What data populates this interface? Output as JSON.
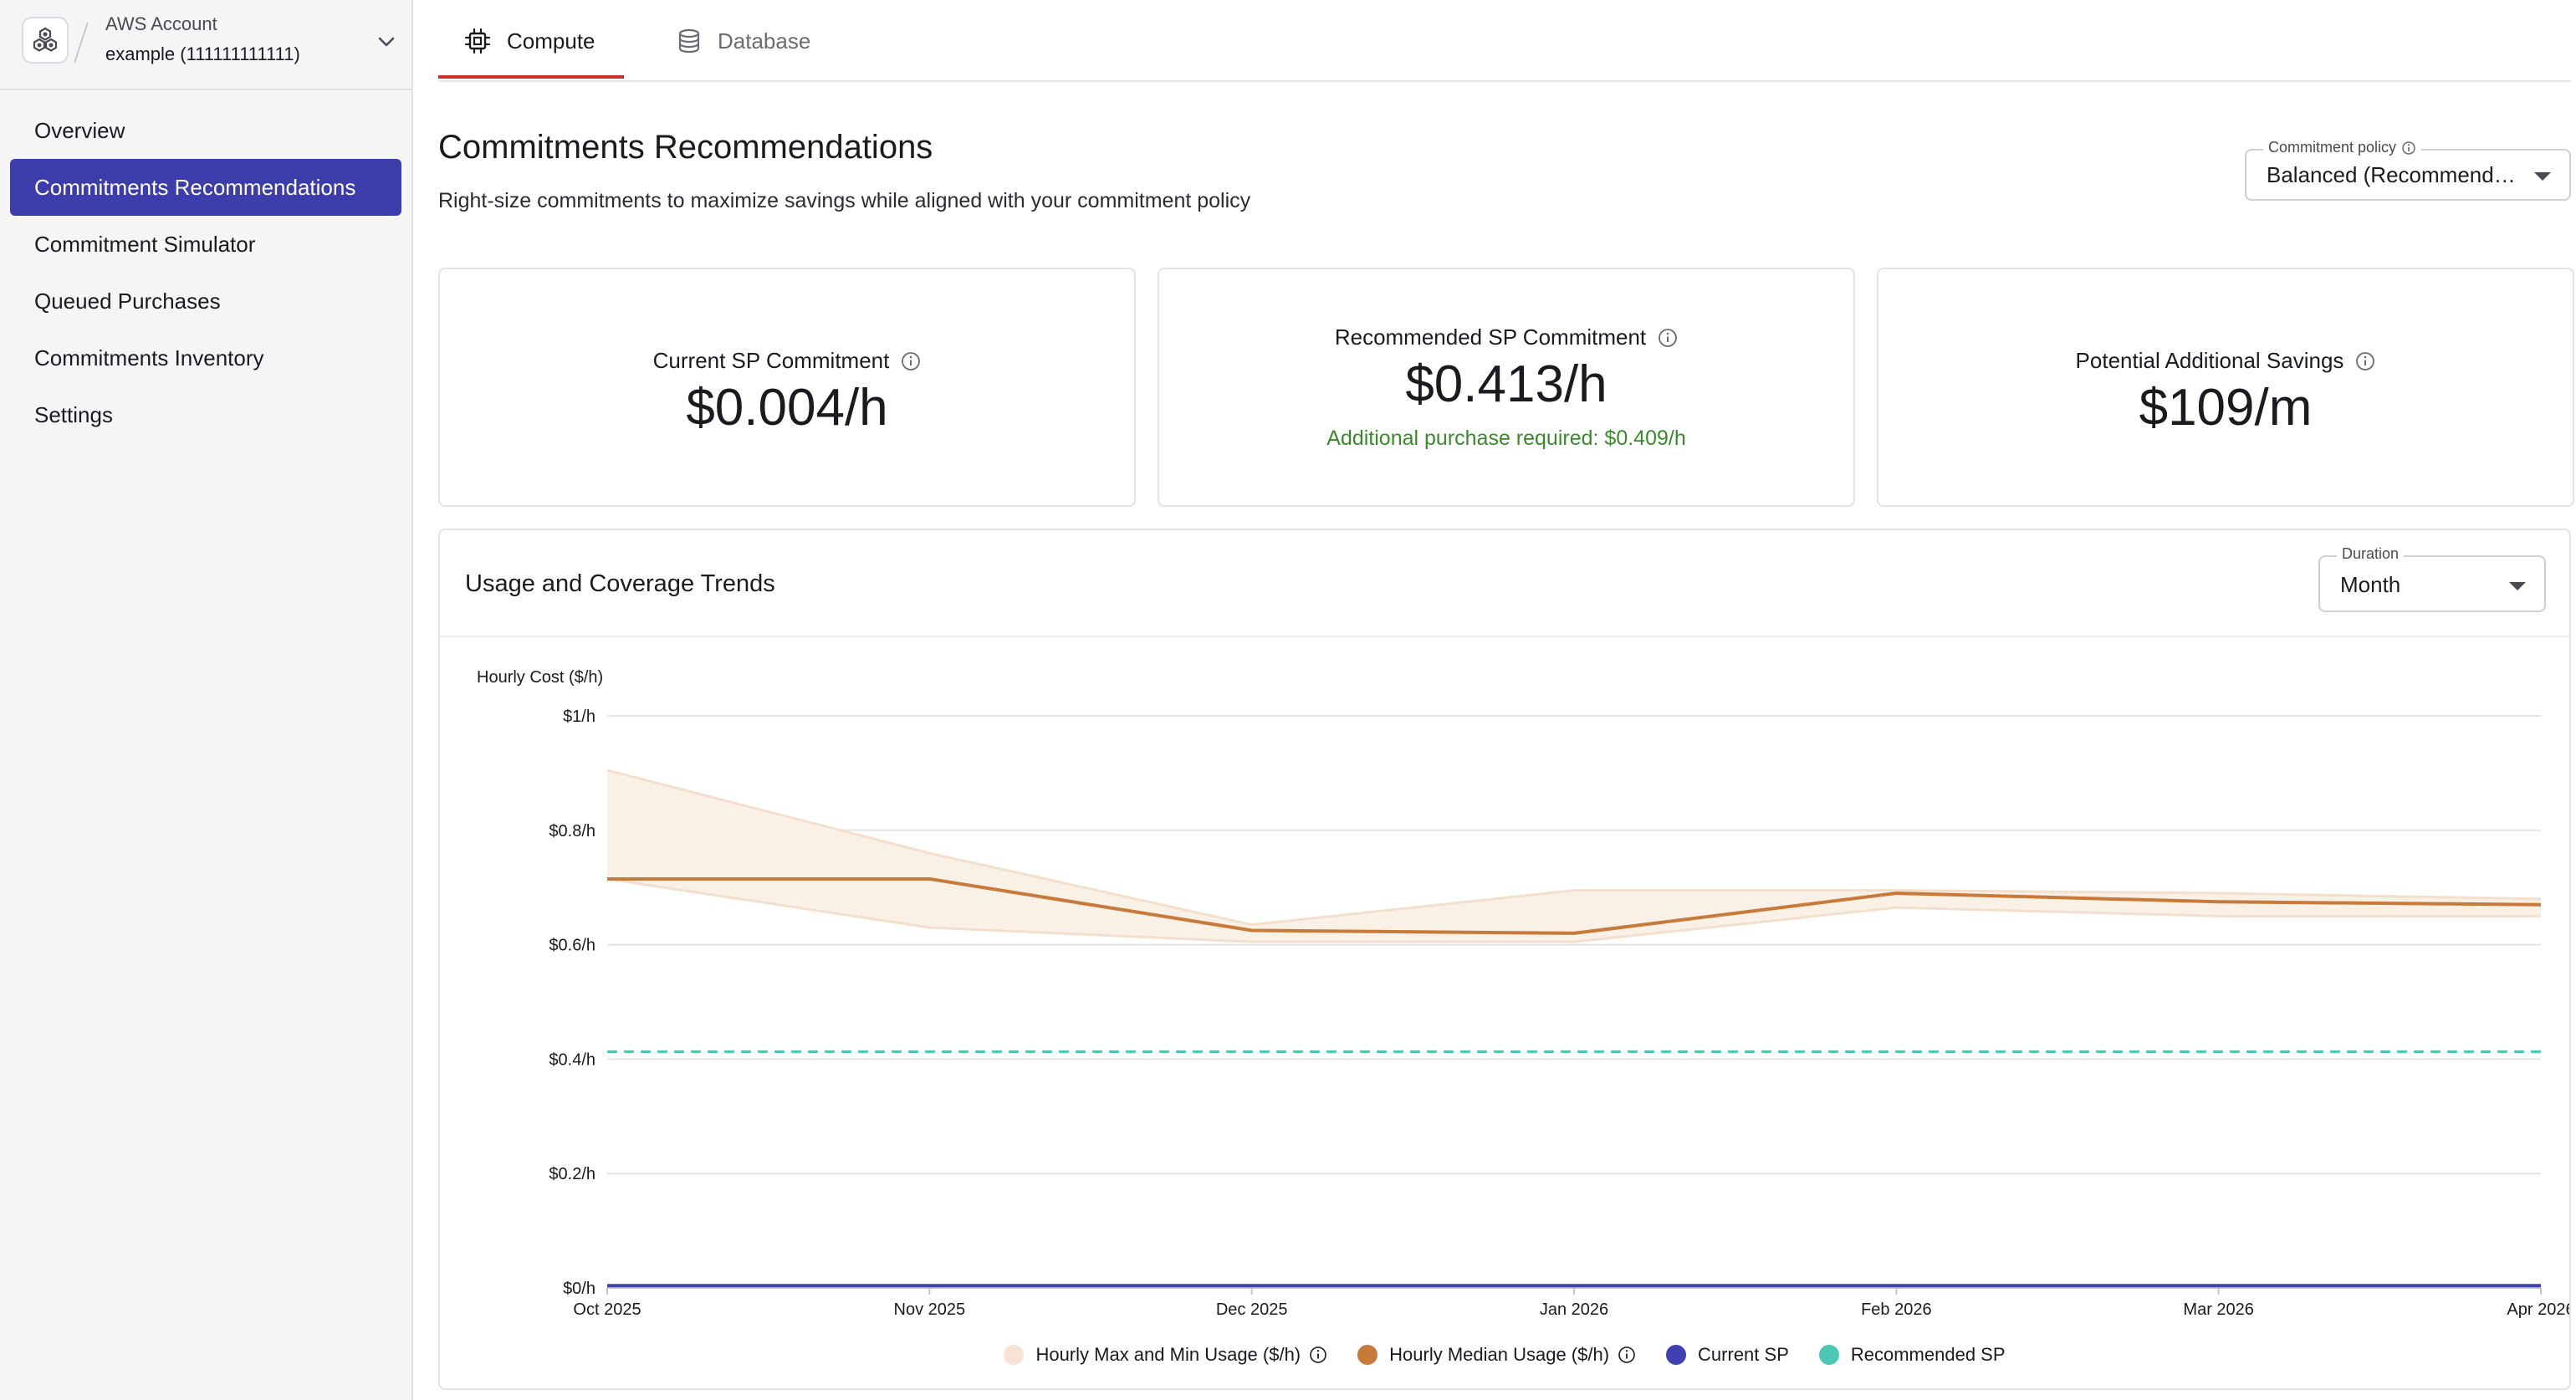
{
  "account": {
    "label": "AWS Account",
    "value": "example (111111111111)"
  },
  "sidebar": {
    "items": [
      {
        "label": "Overview",
        "active": false
      },
      {
        "label": "Commitments Recommendations",
        "active": true
      },
      {
        "label": "Commitment Simulator",
        "active": false
      },
      {
        "label": "Queued Purchases",
        "active": false
      },
      {
        "label": "Commitments Inventory",
        "active": false
      },
      {
        "label": "Settings",
        "active": false
      }
    ]
  },
  "tabs": [
    {
      "label": "Compute",
      "icon": "cpu-icon",
      "active": true
    },
    {
      "label": "Database",
      "icon": "database-icon",
      "active": false
    }
  ],
  "page": {
    "title": "Commitments Recommendations",
    "subtitle": "Right-size commitments to maximize savings while aligned with your commitment policy"
  },
  "policy": {
    "label": "Commitment policy",
    "value": "Balanced (Recommended)"
  },
  "cards": {
    "current": {
      "label": "Current SP Commitment",
      "value": "$0.004/h"
    },
    "recommended": {
      "label": "Recommended SP Commitment",
      "value": "$0.413/h",
      "note": "Additional purchase required: $0.409/h"
    },
    "savings": {
      "label": "Potential Additional Savings",
      "value": "$109/m"
    }
  },
  "trends": {
    "title": "Usage and Coverage Trends",
    "duration_label": "Duration",
    "duration_value": "Month"
  },
  "colors": {
    "accent": "#3c3cab",
    "tab_indicator": "#c9302c",
    "band_fill": "#f9f0e6",
    "band_line": "#f3dfcc",
    "median": "#c87a3a",
    "current_sp": "#4040b0",
    "recommended_sp": "#4cc7b4",
    "positive": "#3a8a2a"
  },
  "chart_data": {
    "type": "line",
    "ylabel": "Hourly Cost ($/h)",
    "ylim": [
      0,
      1
    ],
    "yticks": [
      0,
      0.2,
      0.4,
      0.6,
      0.8,
      1.0
    ],
    "ytick_labels": [
      "$0/h",
      "$0.2/h",
      "$0.4/h",
      "$0.6/h",
      "$0.8/h",
      "$1/h"
    ],
    "x": [
      "Oct 2025",
      "Nov 2025",
      "Dec 2025",
      "Jan 2026",
      "Feb 2026",
      "Mar 2026",
      "Apr 2026"
    ],
    "grid": true,
    "series": [
      {
        "name": "Hourly Max and Min Usage ($/h)",
        "kind": "band",
        "max": [
          0.905,
          0.76,
          0.635,
          0.695,
          0.695,
          0.69,
          0.68
        ],
        "min": [
          0.715,
          0.63,
          0.605,
          0.605,
          0.665,
          0.65,
          0.65
        ],
        "info": true
      },
      {
        "name": "Hourly Median Usage ($/h)",
        "kind": "line",
        "values": [
          0.715,
          0.715,
          0.625,
          0.62,
          0.69,
          0.675,
          0.67
        ],
        "info": true
      },
      {
        "name": "Current SP",
        "kind": "line",
        "values": [
          0.004,
          0.004,
          0.004,
          0.004,
          0.004,
          0.004,
          0.004
        ],
        "info": false
      },
      {
        "name": "Recommended SP",
        "kind": "dashed",
        "values": [
          0.413,
          0.413,
          0.413,
          0.413,
          0.413,
          0.413,
          0.413
        ],
        "info": false
      }
    ]
  }
}
